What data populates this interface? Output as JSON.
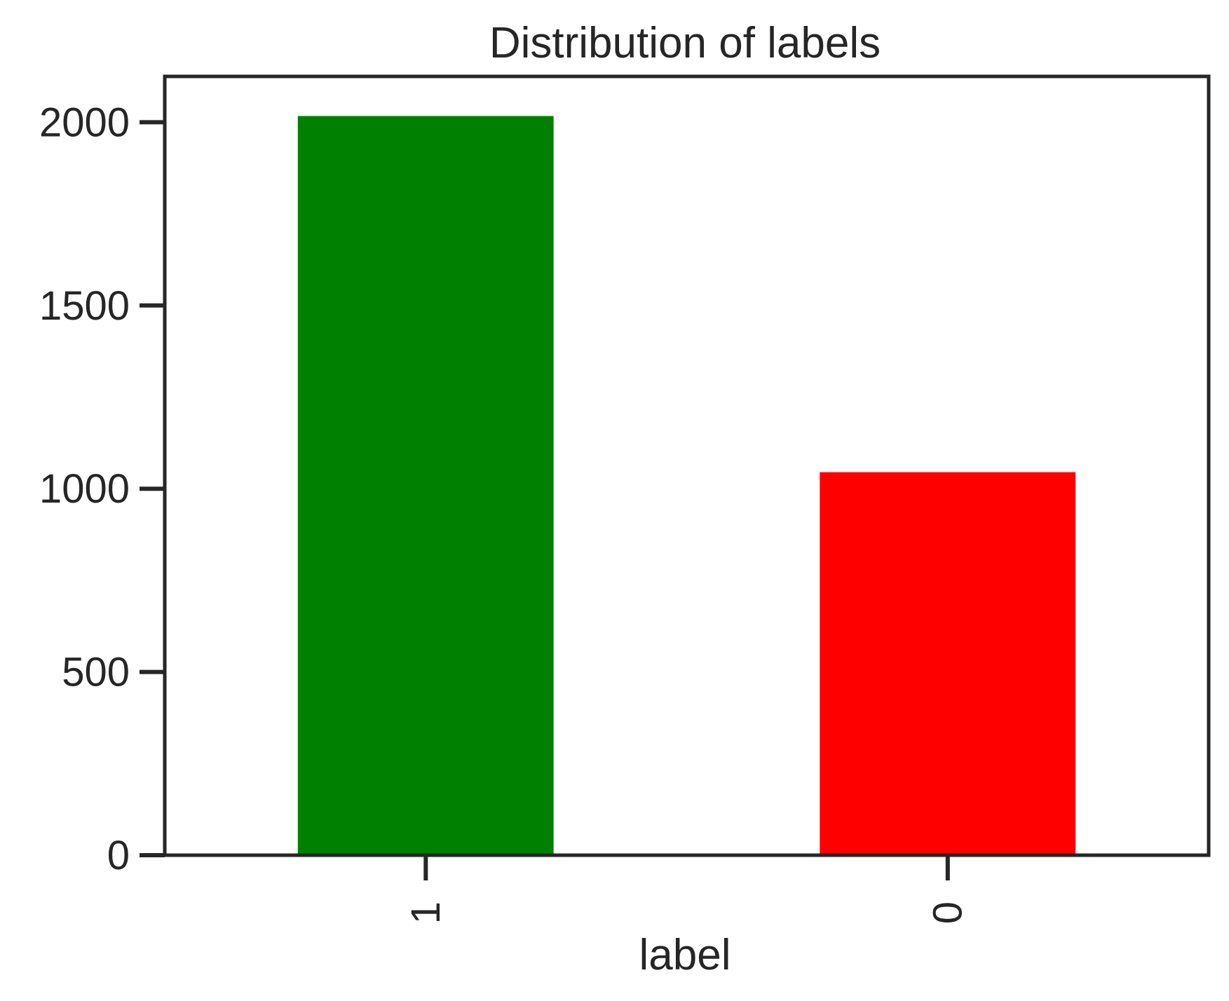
{
  "chart_data": {
    "type": "bar",
    "title": "Distribution of labels",
    "xlabel": "label",
    "ylabel": "",
    "categories": [
      "1",
      "0"
    ],
    "values": [
      2017,
      1045
    ],
    "bar_colors": [
      "#008000",
      "#ff0000"
    ],
    "ylim": [
      0,
      2125
    ],
    "yticks": [
      0,
      500,
      1000,
      1500,
      2000
    ],
    "ytick_labels": [
      "0",
      "500",
      "1000",
      "1500",
      "2000"
    ],
    "xtick_rotation": "vertical",
    "grid": false,
    "legend": "none"
  },
  "colors": {
    "axis": "#262626",
    "text": "#262626",
    "background": "#ffffff"
  }
}
